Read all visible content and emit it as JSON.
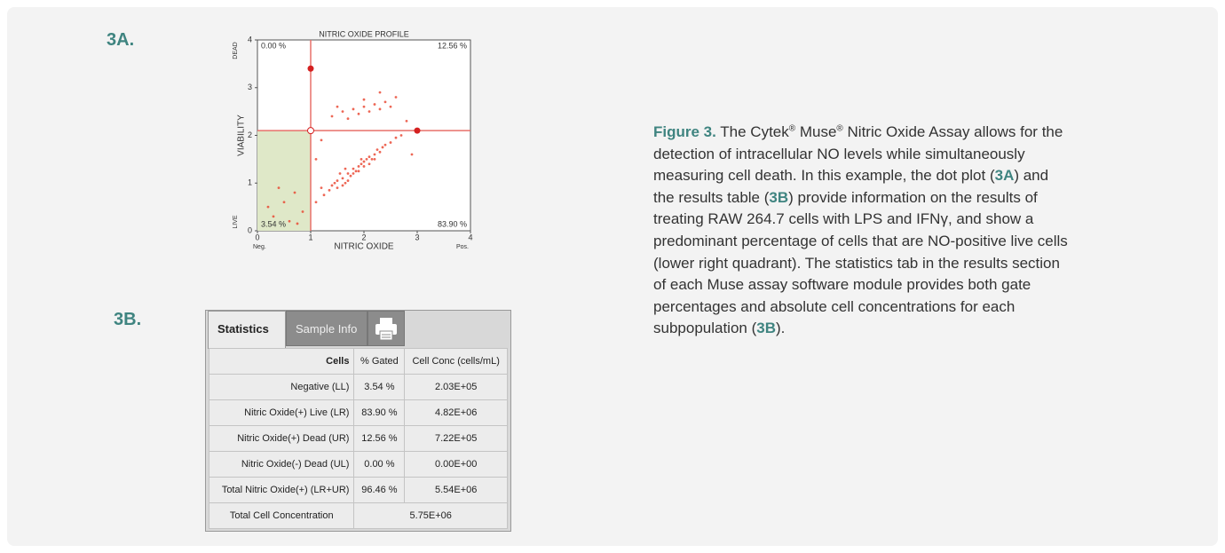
{
  "labels": {
    "a": "3A.",
    "b": "3B."
  },
  "plot": {
    "title": "NITRIC OXIDE PROFILE",
    "x_label": "NITRIC OXIDE",
    "y_label": "VIABILITY",
    "x_low": "Neg.",
    "x_high": "Pos.",
    "y_high": "DEAD",
    "y_low": "LIVE",
    "xlim": [
      0,
      4
    ],
    "ylim": [
      0,
      4
    ],
    "xticks": [
      0,
      1,
      2,
      3,
      4
    ],
    "yticks": [
      0,
      1,
      2,
      3,
      4
    ],
    "gate": {
      "x": 1,
      "y": 2.1,
      "handle_y": 3.4,
      "handle_x": 3
    },
    "quadrants": {
      "ul": "0.00 %",
      "ur": "12.56 %",
      "ll": "3.54 %",
      "lr": "83.90 %"
    },
    "color": "#e8412c",
    "gate_color": "#e8706a",
    "live_fill": "#dfe8c8",
    "points": [
      [
        1.25,
        0.75
      ],
      [
        1.35,
        0.85
      ],
      [
        1.4,
        0.95
      ],
      [
        1.5,
        0.9
      ],
      [
        1.5,
        1.05
      ],
      [
        1.6,
        1.1
      ],
      [
        1.65,
        1.0
      ],
      [
        1.7,
        1.2
      ],
      [
        1.75,
        1.15
      ],
      [
        1.8,
        1.3
      ],
      [
        1.85,
        1.25
      ],
      [
        1.9,
        1.35
      ],
      [
        1.95,
        1.4
      ],
      [
        2.0,
        1.45
      ],
      [
        2.05,
        1.5
      ],
      [
        2.1,
        1.55
      ],
      [
        2.15,
        1.5
      ],
      [
        2.2,
        1.6
      ],
      [
        2.25,
        1.7
      ],
      [
        2.3,
        1.65
      ],
      [
        2.35,
        1.75
      ],
      [
        2.4,
        1.8
      ],
      [
        2.5,
        1.85
      ],
      [
        2.6,
        1.95
      ],
      [
        1.55,
        1.2
      ],
      [
        1.7,
        1.05
      ],
      [
        1.8,
        1.2
      ],
      [
        1.9,
        1.25
      ],
      [
        2.0,
        1.35
      ],
      [
        2.1,
        1.4
      ],
      [
        1.95,
        1.5
      ],
      [
        2.2,
        1.5
      ],
      [
        1.6,
        0.95
      ],
      [
        1.45,
        1.0
      ],
      [
        1.1,
        0.6
      ],
      [
        1.2,
        0.9
      ],
      [
        2.7,
        2.0
      ],
      [
        1.65,
        1.3
      ],
      [
        1.4,
        2.4
      ],
      [
        1.6,
        2.5
      ],
      [
        1.8,
        2.55
      ],
      [
        1.9,
        2.45
      ],
      [
        2.0,
        2.6
      ],
      [
        2.1,
        2.5
      ],
      [
        2.2,
        2.65
      ],
      [
        2.3,
        2.55
      ],
      [
        2.4,
        2.7
      ],
      [
        2.5,
        2.6
      ],
      [
        1.7,
        2.35
      ],
      [
        2.6,
        2.8
      ],
      [
        2.0,
        2.75
      ],
      [
        1.5,
        2.6
      ],
      [
        2.3,
        2.9
      ],
      [
        0.3,
        0.3
      ],
      [
        0.5,
        0.6
      ],
      [
        0.6,
        0.2
      ],
      [
        0.7,
        0.8
      ],
      [
        0.2,
        0.5
      ],
      [
        0.85,
        0.4
      ],
      [
        0.4,
        0.9
      ],
      [
        0.75,
        0.15
      ],
      [
        1.2,
        1.9
      ],
      [
        2.8,
        2.3
      ],
      [
        1.1,
        1.5
      ],
      [
        2.9,
        1.6
      ]
    ]
  },
  "table": {
    "tabs": [
      "Statistics",
      "Sample Info"
    ],
    "header": [
      "Cells",
      "% Gated",
      "Cell Conc (cells/mL)"
    ],
    "rows": [
      [
        "Negative (LL)",
        "3.54 %",
        "2.03E+05"
      ],
      [
        "Nitric Oxide(+) Live (LR)",
        "83.90 %",
        "4.82E+06"
      ],
      [
        "Nitric Oxide(+) Dead (UR)",
        "12.56 %",
        "7.22E+05"
      ],
      [
        "Nitric Oxide(-) Dead (UL)",
        "0.00 %",
        "0.00E+00"
      ],
      [
        "Total Nitric Oxide(+) (LR+UR)",
        "96.46 %",
        "5.54E+06"
      ]
    ],
    "total": [
      "Total Cell Concentration",
      "5.75E+06"
    ]
  },
  "caption": [
    {
      "text": "Figure 3.",
      "kind": "bold"
    },
    {
      "text": " The Cytek",
      "kind": "plain"
    },
    {
      "text": "®",
      "kind": "sup"
    },
    {
      "text": " Muse",
      "kind": "plain"
    },
    {
      "text": "®",
      "kind": "sup"
    },
    {
      "text": " Nitric Oxide Assay allows for the detection of intracellular NO levels while simultaneously measuring cell death. In this example, the dot plot (",
      "kind": "plain"
    },
    {
      "text": "3A",
      "kind": "bold"
    },
    {
      "text": ") and the results table (",
      "kind": "plain"
    },
    {
      "text": "3B",
      "kind": "bold"
    },
    {
      "text": ") provide information on the results of treating RAW 264.7 cells with LPS and IFNγ, and show a predominant percentage of cells that are NO-positive live cells (lower right quadrant). The statistics tab in the results section of each Muse assay software module provides both gate percentages and absolute cell concentrations for each subpopulation (",
      "kind": "plain"
    },
    {
      "text": "3B",
      "kind": "bold"
    },
    {
      "text": ").",
      "kind": "plain"
    }
  ]
}
